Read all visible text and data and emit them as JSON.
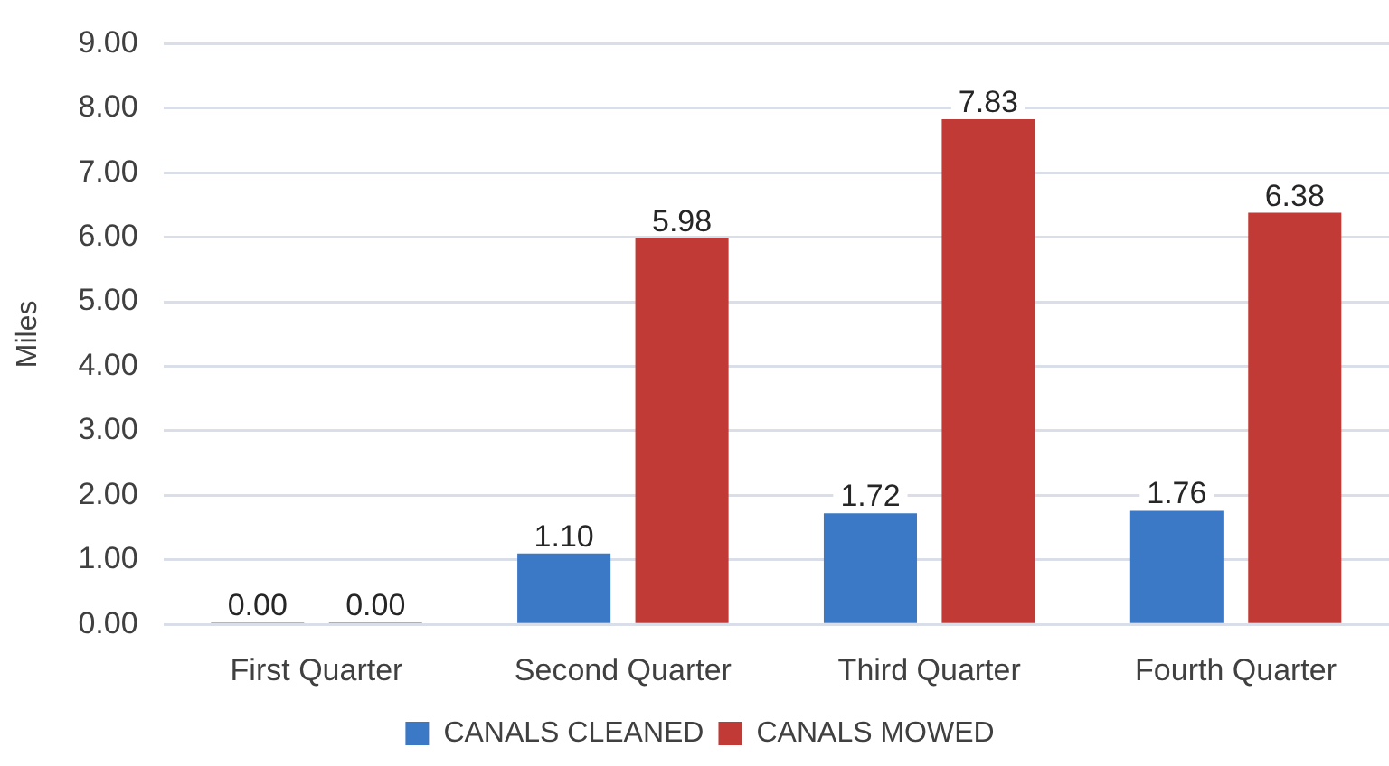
{
  "chart_data": {
    "type": "bar",
    "ylabel": "Miles",
    "categories": [
      "First Quarter",
      "Second Quarter",
      "Third Quarter",
      "Fourth Quarter"
    ],
    "series": [
      {
        "name": "CANALS CLEANED",
        "color": "#3b78c6",
        "values": [
          0,
          1.1,
          1.72,
          1.76
        ],
        "value_labels": [
          "0.00",
          "1.10",
          "1.72",
          "1.76"
        ]
      },
      {
        "name": "CANALS MOWED",
        "color": "#c23a35",
        "values": [
          0,
          5.98,
          7.83,
          6.38
        ],
        "value_labels": [
          "0.00",
          "5.98",
          "7.83",
          "6.38"
        ]
      }
    ],
    "ylim": [
      0,
      9
    ],
    "yticks": [
      {
        "value": 0,
        "label": "0.00"
      },
      {
        "value": 1,
        "label": "1.00"
      },
      {
        "value": 2,
        "label": "2.00"
      },
      {
        "value": 3,
        "label": "3.00"
      },
      {
        "value": 4,
        "label": "4.00"
      },
      {
        "value": 5,
        "label": "5.00"
      },
      {
        "value": 6,
        "label": "6.00"
      },
      {
        "value": 7,
        "label": "7.00"
      },
      {
        "value": 8,
        "label": "8.00"
      },
      {
        "value": 9,
        "label": "9.00"
      }
    ],
    "grid": "y",
    "legend": "bottom"
  }
}
